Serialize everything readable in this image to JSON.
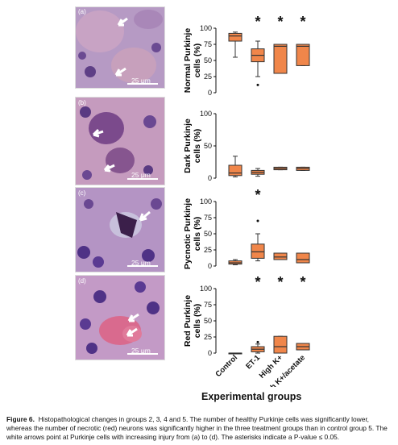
{
  "panels": [
    {
      "letter": "(a)",
      "scale": "25 μm"
    },
    {
      "letter": "(b)",
      "scale": "25 μm"
    },
    {
      "letter": "(c)",
      "scale": "25 μm"
    },
    {
      "letter": "(d)",
      "scale": "25 μm"
    }
  ],
  "chart_data": [
    {
      "type": "box",
      "ylabel": "Normal Purkinje cells (%)",
      "ylim": [
        0,
        100
      ],
      "yticks": [
        0,
        25,
        50,
        75,
        100
      ],
      "categories": [
        "Control",
        "ET-1",
        "High K+",
        "High K+/acetate"
      ],
      "boxes": [
        {
          "min": 55,
          "q1": 80,
          "median": 88,
          "q3": 92,
          "max": 94,
          "outliers": []
        },
        {
          "min": 25,
          "q1": 48,
          "median": 58,
          "q3": 68,
          "max": 80,
          "outliers": [
            12
          ]
        },
        {
          "min": 30,
          "q1": 30,
          "median": 72,
          "q3": 75,
          "max": 75,
          "outliers": []
        },
        {
          "min": 42,
          "q1": 42,
          "median": 72,
          "q3": 75,
          "max": 75,
          "outliers": []
        }
      ],
      "significant": [
        false,
        true,
        true,
        true
      ]
    },
    {
      "type": "box",
      "ylabel": "Dark Purkinje cells (%)",
      "ylim": [
        0,
        100
      ],
      "yticks": [
        0,
        50,
        100
      ],
      "categories": [
        "Control",
        "ET-1",
        "High K+",
        "High K+/acetate"
      ],
      "boxes": [
        {
          "min": 2,
          "q1": 4,
          "median": 8,
          "q3": 20,
          "max": 34,
          "outliers": []
        },
        {
          "min": 3,
          "q1": 6,
          "median": 9,
          "q3": 12,
          "max": 15,
          "outliers": []
        },
        {
          "min": 13,
          "q1": 13,
          "median": 15,
          "q3": 17,
          "max": 17,
          "outliers": []
        },
        {
          "min": 12,
          "q1": 12,
          "median": 15,
          "q3": 17,
          "max": 17,
          "outliers": []
        }
      ],
      "significant": [
        false,
        false,
        false,
        false
      ]
    },
    {
      "type": "box",
      "ylabel": "Pycnotic Purkinje cells (%)",
      "ylim": [
        0,
        100
      ],
      "yticks": [
        0,
        25,
        50,
        75,
        100
      ],
      "categories": [
        "Control",
        "ET-1",
        "High K+",
        "High K+/acetate"
      ],
      "boxes": [
        {
          "min": 2,
          "q1": 3,
          "median": 5,
          "q3": 8,
          "max": 10,
          "outliers": []
        },
        {
          "min": 8,
          "q1": 12,
          "median": 22,
          "q3": 34,
          "max": 50,
          "outliers": [
            70
          ]
        },
        {
          "min": 10,
          "q1": 10,
          "median": 14,
          "q3": 20,
          "max": 20,
          "outliers": []
        },
        {
          "min": 5,
          "q1": 5,
          "median": 10,
          "q3": 20,
          "max": 20,
          "outliers": []
        }
      ],
      "significant": [
        false,
        true,
        false,
        false
      ]
    },
    {
      "type": "box",
      "ylabel": "Red Purkinje cells (%)",
      "ylim": [
        0,
        100
      ],
      "yticks": [
        0,
        25,
        50,
        75,
        100
      ],
      "categories": [
        "Control",
        "ET-1",
        "High K+",
        "High K+/acetate"
      ],
      "boxes": [
        {
          "min": 0,
          "q1": 0,
          "median": 0,
          "q3": 0,
          "max": 0,
          "outliers": []
        },
        {
          "min": 0,
          "q1": 2,
          "median": 6,
          "q3": 10,
          "max": 14,
          "outliers": [
            17
          ]
        },
        {
          "min": 0,
          "q1": 0,
          "median": 10,
          "q3": 26,
          "max": 26,
          "outliers": []
        },
        {
          "min": 5,
          "q1": 5,
          "median": 10,
          "q3": 15,
          "max": 15,
          "outliers": []
        }
      ],
      "significant": [
        false,
        true,
        true,
        true
      ]
    }
  ],
  "xlabel": "Experimental groups",
  "caption": {
    "label": "Figure 6.",
    "text": "Histopathological changes in groups 2, 3, 4 and 5. The number of healthy Purkinje cells was significantly lower, whereas the number of necrotic (red) neurons was significantly higher in the three treatment groups than in control group 5. The white arrows point at Purkinje cells with increasing injury from (a) to (d). The asterisks indicate a P-value ≤ 0.05."
  },
  "colors": {
    "box_fill": "#f0864a",
    "box_edge": "#333333"
  }
}
